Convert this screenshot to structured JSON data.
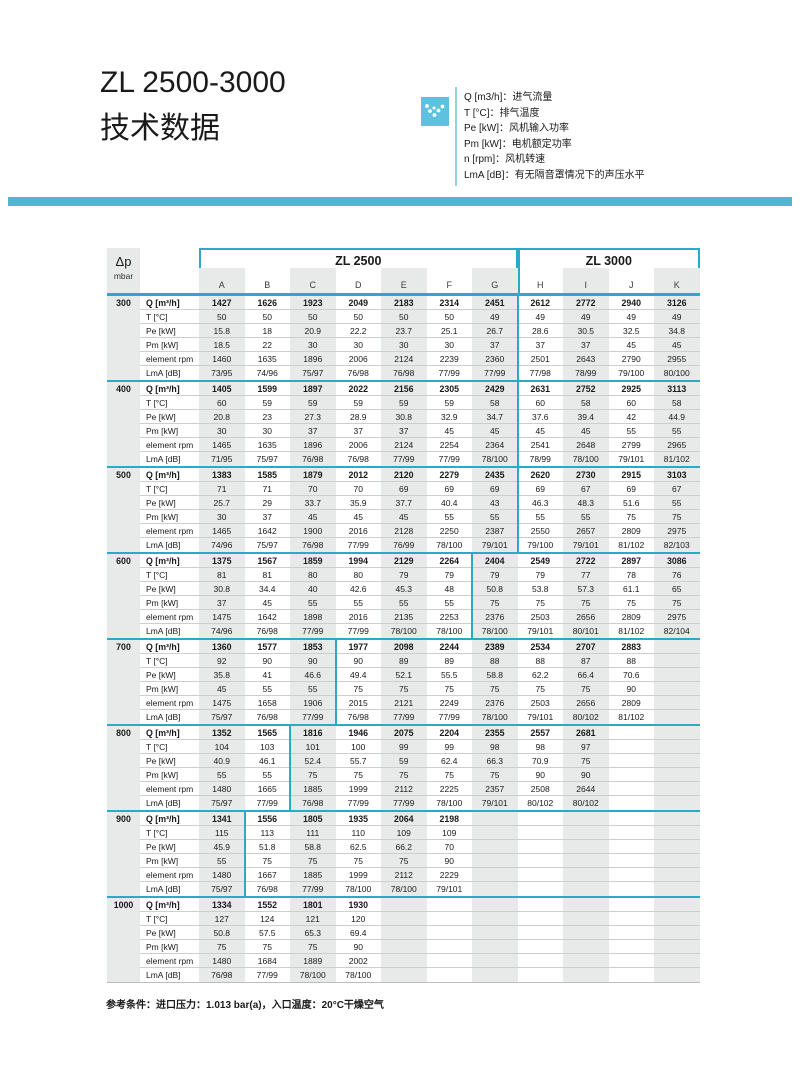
{
  "page": {
    "title_line1": "ZL 2500-3000",
    "title_line2": "技术数据"
  },
  "legend": {
    "icon": "dots-check-icon",
    "items": [
      "Q [m3/h]：进气流量",
      "T [°C]：排气温度",
      "Pe [kW]：风机输入功率",
      "Pm [kW]：电机额定功率",
      "n [rpm]：风机转速",
      "LmA [dB]：有无隔音罩情况下的声压水平"
    ]
  },
  "colors": {
    "accent_teal": "#2aa9c8",
    "header_bar": "#4cb9d0",
    "icon_blue": "#5ec2de",
    "stripe_gray": "#e8eaea"
  },
  "table": {
    "dp_header": "Δp",
    "dp_unit": "mbar",
    "model_groups": [
      {
        "label": "ZL 2500",
        "col_span": 7
      },
      {
        "label": "ZL 3000",
        "col_span": 4
      }
    ],
    "columns": [
      "A",
      "B",
      "C",
      "D",
      "E",
      "F",
      "G",
      "H",
      "I",
      "J",
      "K"
    ],
    "row_labels": [
      "Q [m³/h]",
      "T [°C]",
      "Pe [kW]",
      "Pm [kW]",
      "element rpm",
      "LmA [dB]"
    ],
    "groups": [
      {
        "dp": "300",
        "split_after": 7,
        "rows": [
          [
            "1427",
            "1626",
            "1923",
            "2049",
            "2183",
            "2314",
            "2451",
            "2612",
            "2772",
            "2940",
            "3126"
          ],
          [
            "50",
            "50",
            "50",
            "50",
            "50",
            "50",
            "49",
            "49",
            "49",
            "49",
            "49"
          ],
          [
            "15.8",
            "18",
            "20.9",
            "22.2",
            "23.7",
            "25.1",
            "26.7",
            "28.6",
            "30.5",
            "32.5",
            "34.8"
          ],
          [
            "18.5",
            "22",
            "30",
            "30",
            "30",
            "30",
            "37",
            "37",
            "37",
            "45",
            "45"
          ],
          [
            "1460",
            "1635",
            "1896",
            "2006",
            "2124",
            "2239",
            "2360",
            "2501",
            "2643",
            "2790",
            "2955"
          ],
          [
            "73/95",
            "74/96",
            "75/97",
            "76/98",
            "76/98",
            "77/99",
            "77/99",
            "77/98",
            "78/99",
            "79/100",
            "80/100"
          ]
        ]
      },
      {
        "dp": "400",
        "split_after": 7,
        "rows": [
          [
            "1405",
            "1599",
            "1897",
            "2022",
            "2156",
            "2305",
            "2429",
            "2631",
            "2752",
            "2925",
            "3113"
          ],
          [
            "60",
            "59",
            "59",
            "59",
            "59",
            "59",
            "58",
            "60",
            "58",
            "60",
            "58"
          ],
          [
            "20.8",
            "23",
            "27.3",
            "28.9",
            "30.8",
            "32.9",
            "34.7",
            "37.6",
            "39.4",
            "42",
            "44.9"
          ],
          [
            "30",
            "30",
            "37",
            "37",
            "37",
            "45",
            "45",
            "45",
            "45",
            "55",
            "55"
          ],
          [
            "1465",
            "1635",
            "1896",
            "2006",
            "2124",
            "2254",
            "2364",
            "2541",
            "2648",
            "2799",
            "2965"
          ],
          [
            "71/95",
            "75/97",
            "76/98",
            "76/98",
            "77/99",
            "77/99",
            "78/100",
            "78/99",
            "78/100",
            "79/101",
            "81/102"
          ]
        ]
      },
      {
        "dp": "500",
        "split_after": 7,
        "rows": [
          [
            "1383",
            "1585",
            "1879",
            "2012",
            "2120",
            "2279",
            "2435",
            "2620",
            "2730",
            "2915",
            "3103"
          ],
          [
            "71",
            "71",
            "70",
            "70",
            "69",
            "69",
            "69",
            "69",
            "67",
            "69",
            "67"
          ],
          [
            "25.7",
            "29",
            "33.7",
            "35.9",
            "37.7",
            "40.4",
            "43",
            "46.3",
            "48.3",
            "51.6",
            "55"
          ],
          [
            "30",
            "37",
            "45",
            "45",
            "45",
            "55",
            "55",
            "55",
            "55",
            "75",
            "75"
          ],
          [
            "1465",
            "1642",
            "1900",
            "2016",
            "2128",
            "2250",
            "2387",
            "2550",
            "2657",
            "2809",
            "2975"
          ],
          [
            "74/96",
            "75/97",
            "76/98",
            "77/99",
            "76/99",
            "78/100",
            "79/101",
            "79/100",
            "79/101",
            "81/102",
            "82/103"
          ]
        ]
      },
      {
        "dp": "600",
        "split_after": 6,
        "rows": [
          [
            "1375",
            "1567",
            "1859",
            "1994",
            "2129",
            "2264",
            "2404",
            "2549",
            "2722",
            "2897",
            "3086"
          ],
          [
            "81",
            "81",
            "80",
            "80",
            "79",
            "79",
            "79",
            "79",
            "77",
            "78",
            "76"
          ],
          [
            "30.8",
            "34.4",
            "40",
            "42.6",
            "45.3",
            "48",
            "50.8",
            "53.8",
            "57.3",
            "61.1",
            "65"
          ],
          [
            "37",
            "45",
            "55",
            "55",
            "55",
            "55",
            "75",
            "75",
            "75",
            "75",
            "75"
          ],
          [
            "1475",
            "1642",
            "1898",
            "2016",
            "2135",
            "2253",
            "2376",
            "2503",
            "2656",
            "2809",
            "2975"
          ],
          [
            "74/96",
            "76/98",
            "77/99",
            "77/99",
            "78/100",
            "78/100",
            "78/100",
            "79/101",
            "80/101",
            "81/102",
            "82/104"
          ]
        ]
      },
      {
        "dp": "700",
        "split_after": 3,
        "rows": [
          [
            "1360",
            "1577",
            "1853",
            "1977",
            "2098",
            "2244",
            "2389",
            "2534",
            "2707",
            "2883",
            ""
          ],
          [
            "92",
            "90",
            "90",
            "90",
            "89",
            "89",
            "88",
            "88",
            "87",
            "88",
            ""
          ],
          [
            "35.8",
            "41",
            "46.6",
            "49.4",
            "52.1",
            "55.5",
            "58.8",
            "62.2",
            "66.4",
            "70.6",
            ""
          ],
          [
            "45",
            "55",
            "55",
            "75",
            "75",
            "75",
            "75",
            "75",
            "75",
            "90",
            ""
          ],
          [
            "1475",
            "1658",
            "1906",
            "2015",
            "2121",
            "2249",
            "2376",
            "2503",
            "2656",
            "2809",
            ""
          ],
          [
            "75/97",
            "76/98",
            "77/99",
            "76/98",
            "77/99",
            "77/99",
            "78/100",
            "79/101",
            "80/102",
            "81/102",
            ""
          ]
        ]
      },
      {
        "dp": "800",
        "split_after": 2,
        "rows": [
          [
            "1352",
            "1565",
            "1816",
            "1946",
            "2075",
            "2204",
            "2355",
            "2557",
            "2681",
            "",
            ""
          ],
          [
            "104",
            "103",
            "101",
            "100",
            "99",
            "99",
            "98",
            "98",
            "97",
            "",
            ""
          ],
          [
            "40.9",
            "46.1",
            "52.4",
            "55.7",
            "59",
            "62.4",
            "66.3",
            "70.9",
            "75",
            "",
            ""
          ],
          [
            "55",
            "55",
            "75",
            "75",
            "75",
            "75",
            "75",
            "90",
            "90",
            "",
            ""
          ],
          [
            "1480",
            "1665",
            "1885",
            "1999",
            "2112",
            "2225",
            "2357",
            "2508",
            "2644",
            "",
            ""
          ],
          [
            "75/97",
            "77/99",
            "76/98",
            "77/99",
            "77/99",
            "78/100",
            "79/101",
            "80/102",
            "80/102",
            "",
            ""
          ]
        ]
      },
      {
        "dp": "900",
        "split_after": 1,
        "rows": [
          [
            "1341",
            "1556",
            "1805",
            "1935",
            "2064",
            "2198",
            "",
            "",
            "",
            "",
            ""
          ],
          [
            "115",
            "113",
            "111",
            "110",
            "109",
            "109",
            "",
            "",
            "",
            "",
            ""
          ],
          [
            "45.9",
            "51.8",
            "58.8",
            "62.5",
            "66.2",
            "70",
            "",
            "",
            "",
            "",
            ""
          ],
          [
            "55",
            "75",
            "75",
            "75",
            "75",
            "90",
            "",
            "",
            "",
            "",
            ""
          ],
          [
            "1480",
            "1667",
            "1885",
            "1999",
            "2112",
            "2229",
            "",
            "",
            "",
            "",
            ""
          ],
          [
            "75/97",
            "76/98",
            "77/99",
            "78/100",
            "78/100",
            "79/101",
            "",
            "",
            "",
            "",
            ""
          ]
        ]
      },
      {
        "dp": "1000",
        "split_after": 0,
        "rows": [
          [
            "1334",
            "1552",
            "1801",
            "1930",
            "",
            "",
            "",
            "",
            "",
            "",
            ""
          ],
          [
            "127",
            "124",
            "121",
            "120",
            "",
            "",
            "",
            "",
            "",
            "",
            ""
          ],
          [
            "50.8",
            "57.5",
            "65.3",
            "69.4",
            "",
            "",
            "",
            "",
            "",
            "",
            ""
          ],
          [
            "75",
            "75",
            "75",
            "90",
            "",
            "",
            "",
            "",
            "",
            "",
            ""
          ],
          [
            "1480",
            "1684",
            "1889",
            "2002",
            "",
            "",
            "",
            "",
            "",
            "",
            ""
          ],
          [
            "76/98",
            "77/99",
            "78/100",
            "78/100",
            "",
            "",
            "",
            "",
            "",
            "",
            ""
          ]
        ]
      }
    ]
  },
  "footer": {
    "note": "参考条件：进口压力：1.013 bar(a)，入口温度：20°C干燥空气"
  }
}
